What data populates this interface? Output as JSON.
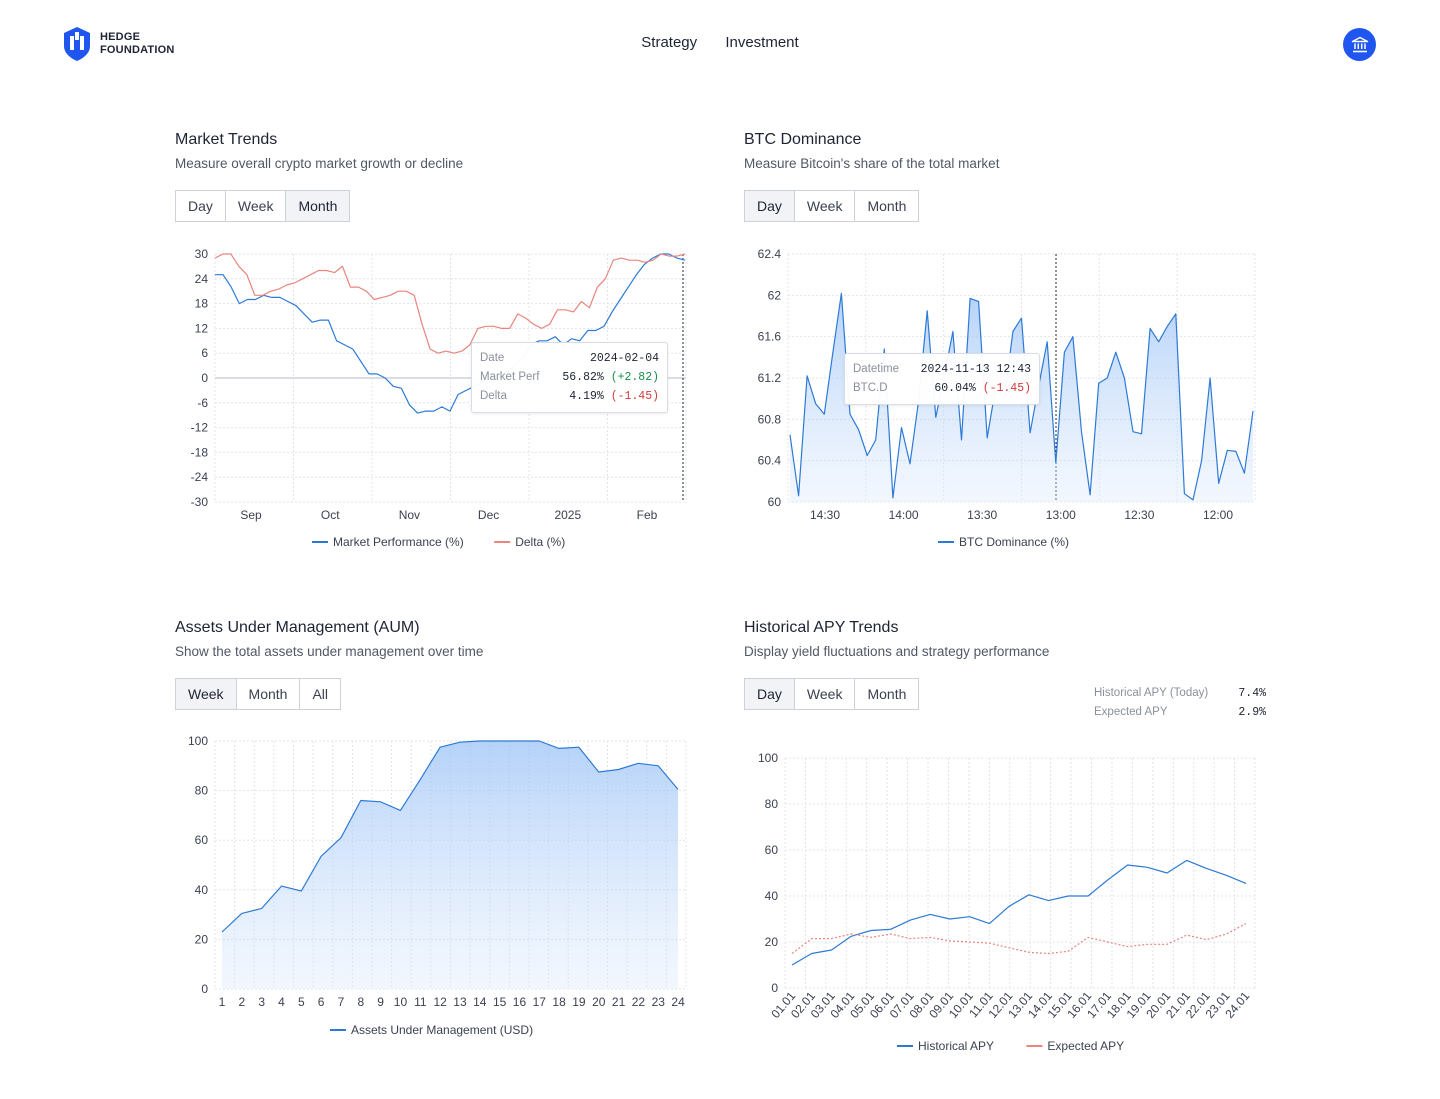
{
  "brand": {
    "line1": "HEDGE",
    "line2": "FOUNDATION"
  },
  "nav": {
    "strategy": "Strategy",
    "investment": "Investment"
  },
  "colors": {
    "blue": "#2d7ad6",
    "red": "#e8857d",
    "accent": "#1f56f0"
  },
  "market": {
    "title": "Market Trends",
    "subtitle": "Measure overall crypto market growth or decline",
    "tabs": [
      "Day",
      "Week",
      "Month"
    ],
    "active_tab": "Month",
    "tooltip": {
      "date_label": "Date",
      "date_value": "2024-02-04",
      "perf_label": "Market Perf",
      "perf_value": "56.82%",
      "perf_change": "(+2.82)",
      "delta_label": "Delta",
      "delta_value": "4.19%",
      "delta_change": "(-1.45)"
    }
  },
  "btc": {
    "title": "BTC Dominance",
    "subtitle": "Measure Bitcoin's share of the total market",
    "tabs": [
      "Day",
      "Week",
      "Month"
    ],
    "active_tab": "Day",
    "tooltip": {
      "dt_label": "Datetime",
      "dt_value": "2024-11-13 12:43",
      "v_label": "BTC.D",
      "v_value": "60.04%",
      "v_change": "(-1.45)"
    }
  },
  "aum": {
    "title": "Assets Under Management (AUM)",
    "subtitle": "Show the total assets under management over time",
    "tabs": [
      "Week",
      "Month",
      "All"
    ],
    "active_tab": "Week"
  },
  "apy": {
    "title": "Historical APY Trends",
    "subtitle": "Display yield fluctuations and strategy performance",
    "tabs": [
      "Day",
      "Week",
      "Month"
    ],
    "active_tab": "Day",
    "stats": {
      "hist_label": "Historical APY (Today)",
      "hist_value": "7.4%",
      "exp_label": "Expected APY",
      "exp_value": "2.9%"
    }
  },
  "chart_data": [
    {
      "id": "market",
      "type": "line",
      "ylim": [
        -30,
        30
      ],
      "yticks": [
        30,
        24,
        18,
        12,
        6,
        0,
        -6,
        -12,
        -18,
        -24,
        -30
      ],
      "xlabels": [
        "Sep",
        "Oct",
        "Nov",
        "Dec",
        "2025",
        "Feb"
      ],
      "series": [
        {
          "name": "Market Performance (%)",
          "color": "#2d7ad6",
          "values": [
            25,
            25,
            22,
            18,
            19,
            19,
            20,
            19.5,
            19.5,
            18.5,
            17.5,
            15.5,
            13.5,
            14,
            14,
            9,
            8,
            7,
            4,
            1,
            1,
            0,
            -2,
            -2.5,
            -6.5,
            -8.5,
            -8,
            -8,
            -7,
            -8,
            -4,
            -3,
            -2,
            -1,
            0,
            0,
            1.5,
            3,
            5,
            8,
            9,
            9,
            10,
            8,
            9.5,
            9,
            11.5,
            11.5,
            12.5,
            16,
            19,
            22,
            25,
            27.5,
            29,
            30,
            30,
            29,
            28.5
          ]
        },
        {
          "name": "Delta (%)",
          "color": "#e8857d",
          "values": [
            29,
            30,
            30,
            27,
            25,
            20,
            20,
            21,
            21.5,
            22.5,
            23,
            24,
            25,
            26,
            26,
            25.5,
            27,
            22,
            22,
            21,
            19,
            19.5,
            20,
            21,
            21,
            20,
            13,
            7,
            6,
            6.5,
            6,
            6.5,
            8,
            12,
            12.5,
            12.5,
            12,
            12,
            15.5,
            14.5,
            13,
            12,
            13,
            16.5,
            16.5,
            16,
            18.5,
            17,
            22,
            24,
            28.5,
            29,
            28.5,
            28.5,
            28,
            28.5,
            30,
            29.5,
            29.5,
            30
          ]
        }
      ]
    },
    {
      "id": "btc",
      "type": "area",
      "ylim": [
        60,
        62.4
      ],
      "yticks": [
        62.4,
        62,
        61.6,
        61.2,
        60.8,
        60.4,
        60
      ],
      "xlabels": [
        "14:30",
        "14:00",
        "13:30",
        "13:00",
        "12:30",
        "12:00"
      ],
      "series": [
        {
          "name": "BTC Dominance (%)",
          "color": "#2d7ad6",
          "values": [
            60.65,
            60.06,
            61.22,
            60.95,
            60.85,
            61.45,
            62.02,
            60.85,
            60.7,
            60.45,
            60.6,
            61.48,
            60.04,
            60.72,
            60.37,
            60.98,
            61.85,
            60.82,
            61.22,
            61.65,
            60.6,
            61.97,
            61.94,
            60.62,
            61.12,
            61.0,
            61.65,
            61.78,
            60.67,
            61.12,
            61.55,
            60.38,
            61.45,
            61.6,
            60.68,
            60.07,
            61.15,
            61.2,
            61.45,
            61.2,
            60.68,
            60.66,
            61.68,
            61.55,
            61.7,
            61.82,
            60.08,
            60.02,
            60.4,
            61.2,
            60.18,
            60.5,
            60.49,
            60.28,
            60.88
          ]
        }
      ]
    },
    {
      "id": "aum",
      "type": "area",
      "ylim": [
        0,
        100
      ],
      "yticks": [
        100,
        80,
        60,
        40,
        20,
        0
      ],
      "xlabels": [
        "1",
        "2",
        "3",
        "4",
        "5",
        "6",
        "7",
        "8",
        "9",
        "10",
        "11",
        "12",
        "13",
        "14",
        "15",
        "16",
        "17",
        "18",
        "19",
        "20",
        "21",
        "22",
        "23",
        "24"
      ],
      "series": [
        {
          "name": "Assets Under Management (USD)",
          "color": "#2d7ad6",
          "values": [
            23,
            30.5,
            32.5,
            41.5,
            39.5,
            53.5,
            61,
            76,
            75.5,
            72,
            84.5,
            97.5,
            99.5,
            100,
            100,
            100,
            100,
            97,
            97.5,
            87.5,
            88.5,
            91,
            90,
            80.5
          ]
        }
      ]
    },
    {
      "id": "apy",
      "type": "line",
      "ylim": [
        0,
        100
      ],
      "yticks": [
        100,
        80,
        60,
        40,
        20,
        0
      ],
      "xlabels": [
        "01.01",
        "02.01",
        "03.01",
        "04.01",
        "05.01",
        "06.01",
        "07.01",
        "08.01",
        "09.01",
        "10.01",
        "11.01",
        "12.01",
        "13.01",
        "14.01",
        "15.01",
        "16.01",
        "17.01",
        "18.01",
        "19.01",
        "20.01",
        "21.01",
        "22.01",
        "23.01",
        "24.01"
      ],
      "series": [
        {
          "name": "Historical APY",
          "color": "#2d7ad6",
          "values": [
            10,
            15,
            16.5,
            22.5,
            25,
            25.5,
            29.5,
            32,
            30,
            31,
            28,
            35.5,
            40.5,
            38,
            40,
            40,
            47,
            53.5,
            52.5,
            50,
            55.5,
            52,
            49,
            45.5
          ]
        },
        {
          "name": "Expected APY",
          "color": "#e8857d",
          "dashed": true,
          "values": [
            15,
            21.5,
            21.5,
            23.5,
            22,
            23.5,
            21.5,
            22,
            20.5,
            20,
            19.5,
            17.5,
            15.5,
            15,
            16,
            22,
            20,
            18,
            19,
            19,
            23,
            21,
            23.5,
            28
          ]
        }
      ]
    }
  ]
}
